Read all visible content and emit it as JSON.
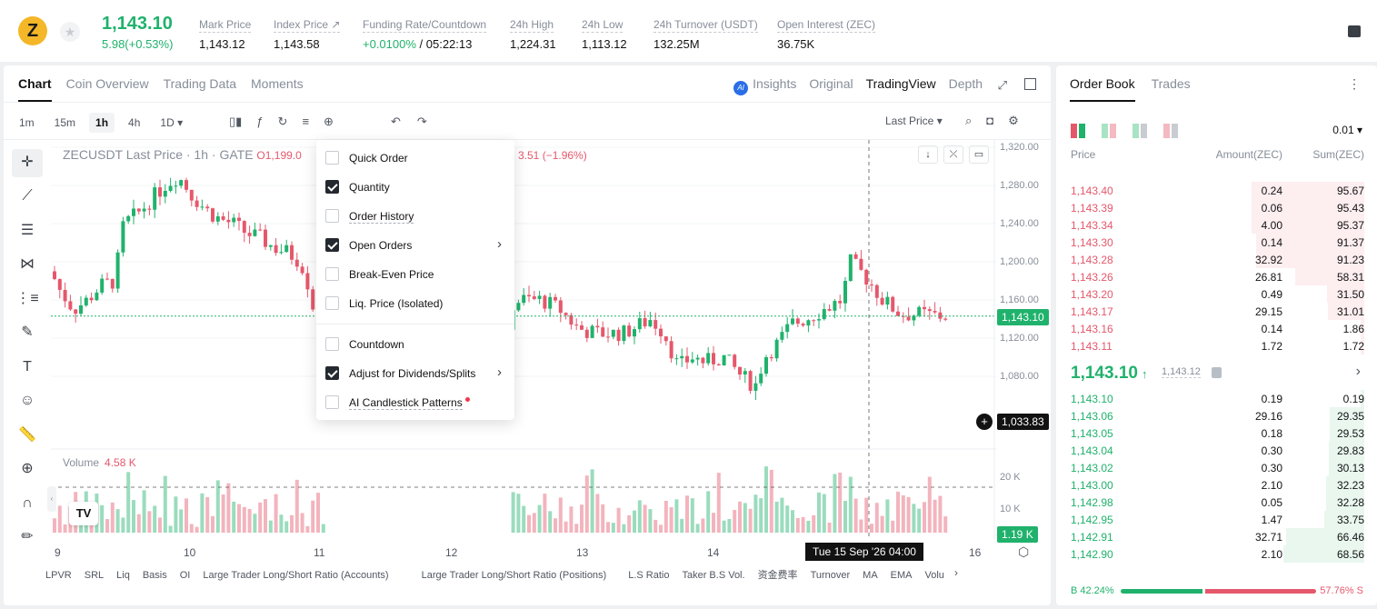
{
  "ticker": {
    "coin_icon": "Z",
    "last_price": "1,143.10",
    "change": "5.98(+0.53%)",
    "stats": [
      {
        "label": "Mark Price",
        "value": "1,143.12"
      },
      {
        "label": "Index Price ↗",
        "value": "1,143.58"
      },
      {
        "label": "Funding Rate/Countdown",
        "value_green": "+0.0100%",
        "value": " / 05:22:13"
      },
      {
        "label": "24h High",
        "value": "1,224.31"
      },
      {
        "label": "24h Low",
        "value": "1,113.12"
      },
      {
        "label": "24h Turnover (USDT)",
        "value": "132.25M"
      },
      {
        "label": "Open Interest (ZEC)",
        "value": "36.75K"
      }
    ]
  },
  "chart_tabs": [
    "Chart",
    "Coin Overview",
    "Trading Data",
    "Moments"
  ],
  "view_tabs": {
    "ai_badge": "AI",
    "insights": "Insights",
    "original": "Original",
    "tradingview": "TradingView",
    "depth": "Depth"
  },
  "intervals": [
    "1m",
    "15m",
    "1h",
    "4h",
    "1D ▾"
  ],
  "price_type": "Last Price ▾",
  "legend": {
    "symbol": "ZECUSDT Last Price · 1h · GATE",
    "open": "O1,199.0",
    "change": "3.51 (−1.96%)"
  },
  "y_ticks": [
    "1,320.00",
    "1,280.00",
    "1,240.00",
    "1,200.00",
    "1,160.00",
    "1,120.00",
    "1,080.00"
  ],
  "price_tag": "1,143.10",
  "cross_tag": "1,033.83",
  "volume": {
    "label": "Volume",
    "value": "4.58 K",
    "ticks": [
      "20 K",
      "10 K"
    ],
    "tag": "1.19 K"
  },
  "x_ticks": [
    "9",
    "10",
    "11",
    "12",
    "13",
    "14",
    "16"
  ],
  "time_tag": "Tue 15 Sep '26   04:00",
  "indicators": [
    "LPVR",
    "SRL",
    "Liq",
    "Basis",
    "OI",
    "Large Trader Long/Short Ratio (Accounts)",
    "Large Trader Long/Short Ratio (Positions)",
    "L.S Ratio",
    "Taker B.S Vol.",
    "资金费率",
    "Turnover",
    "MA",
    "EMA",
    "Volu"
  ],
  "menu": [
    {
      "label": "Quick Order",
      "checked": false
    },
    {
      "label": "Quantity",
      "checked": true
    },
    {
      "label": "Order History",
      "checked": false
    },
    {
      "label": "Open Orders",
      "checked": true
    },
    {
      "label": "Break-Even Price",
      "checked": false
    },
    {
      "label": "Liq. Price (Isolated)",
      "checked": false
    },
    {
      "label": "Countdown",
      "checked": false
    },
    {
      "label": "Adjust for Dividends/Splits",
      "checked": true
    },
    {
      "label": "AI Candlestick Patterns",
      "checked": false
    }
  ],
  "book": {
    "tabs": [
      "Order Book",
      "Trades"
    ],
    "precision": "0.01 ▾",
    "headers": {
      "price": "Price",
      "amount": "Amount(ZEC)",
      "sum": "Sum(ZEC)"
    },
    "asks": [
      [
        "1,143.40",
        "0.24",
        "95.67"
      ],
      [
        "1,143.39",
        "0.06",
        "95.43"
      ],
      [
        "1,143.34",
        "4.00",
        "95.37"
      ],
      [
        "1,143.30",
        "0.14",
        "91.37"
      ],
      [
        "1,143.28",
        "32.92",
        "91.23"
      ],
      [
        "1,143.26",
        "26.81",
        "58.31"
      ],
      [
        "1,143.20",
        "0.49",
        "31.50"
      ],
      [
        "1,143.17",
        "29.15",
        "31.01"
      ],
      [
        "1,143.16",
        "0.14",
        "1.86"
      ],
      [
        "1,143.11",
        "1.72",
        "1.72"
      ]
    ],
    "mid": {
      "price": "1,143.10",
      "arrow": "↑",
      "mark": "1,143.12"
    },
    "bids": [
      [
        "1,143.10",
        "0.19",
        "0.19"
      ],
      [
        "1,143.06",
        "29.16",
        "29.35"
      ],
      [
        "1,143.05",
        "0.18",
        "29.53"
      ],
      [
        "1,143.04",
        "0.30",
        "29.83"
      ],
      [
        "1,143.02",
        "0.30",
        "30.13"
      ],
      [
        "1,143.00",
        "2.10",
        "32.23"
      ],
      [
        "1,142.98",
        "0.05",
        "32.28"
      ],
      [
        "1,142.95",
        "1.47",
        "33.75"
      ],
      [
        "1,142.91",
        "32.71",
        "66.46"
      ],
      [
        "1,142.90",
        "2.10",
        "68.56"
      ]
    ],
    "buy_ratio": "B 42.24%",
    "sell_ratio": "57.76% S",
    "buy_pct": 42.24
  },
  "colors": {
    "up": "#20b26c",
    "down": "#e5586c"
  }
}
